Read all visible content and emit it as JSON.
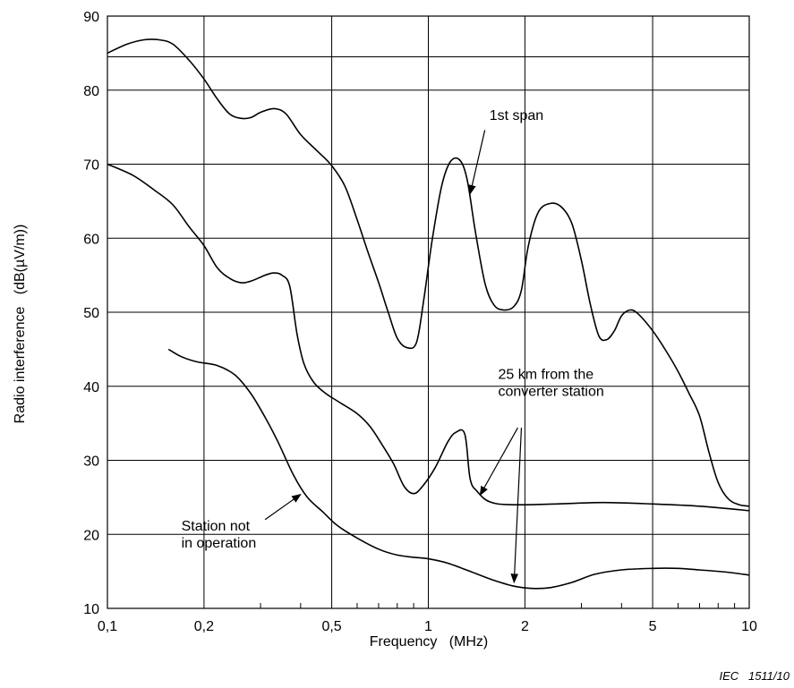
{
  "chart_data": {
    "type": "line",
    "title": "",
    "xlabel": "Frequency   (MHz)",
    "ylabel": "Radio interference   (dB(µV/m))",
    "x_scale": "log",
    "xlim": [
      0.1,
      10
    ],
    "ylim": [
      10,
      90
    ],
    "grid": true,
    "x_ticks": [
      {
        "value": 0.1,
        "label": "0,1"
      },
      {
        "value": 0.2,
        "label": "0,2"
      },
      {
        "value": 0.5,
        "label": "0,5"
      },
      {
        "value": 1,
        "label": "1"
      },
      {
        "value": 2,
        "label": "2"
      },
      {
        "value": 5,
        "label": "5"
      },
      {
        "value": 10,
        "label": "10"
      }
    ],
    "y_ticks": [
      {
        "value": 10,
        "label": "10"
      },
      {
        "value": 20,
        "label": "20"
      },
      {
        "value": 30,
        "label": "30"
      },
      {
        "value": 40,
        "label": "40"
      },
      {
        "value": 50,
        "label": "50"
      },
      {
        "value": 60,
        "label": "60"
      },
      {
        "value": 70,
        "label": "70"
      },
      {
        "value": 80,
        "label": "80"
      },
      {
        "value": 90,
        "label": "90"
      }
    ],
    "extra_hline": 84.5,
    "series": [
      {
        "points": [
          [
            0.1,
            85
          ],
          [
            0.115,
            86.2
          ],
          [
            0.13,
            86.8
          ],
          [
            0.145,
            86.8
          ],
          [
            0.16,
            86.2
          ],
          [
            0.18,
            84
          ],
          [
            0.2,
            81.5
          ],
          [
            0.22,
            78.8
          ],
          [
            0.24,
            76.8
          ],
          [
            0.26,
            76.2
          ],
          [
            0.28,
            76.3
          ],
          [
            0.3,
            77
          ],
          [
            0.33,
            77.5
          ],
          [
            0.36,
            76.8
          ],
          [
            0.4,
            74
          ],
          [
            0.45,
            71.8
          ],
          [
            0.5,
            69.8
          ],
          [
            0.55,
            67
          ],
          [
            0.6,
            62.5
          ],
          [
            0.65,
            58
          ],
          [
            0.7,
            54
          ],
          [
            0.75,
            50
          ],
          [
            0.8,
            46.5
          ],
          [
            0.86,
            45.2
          ],
          [
            0.92,
            46
          ],
          [
            0.97,
            52
          ],
          [
            1.03,
            60
          ],
          [
            1.1,
            67
          ],
          [
            1.17,
            70.3
          ],
          [
            1.25,
            70.6
          ],
          [
            1.32,
            68
          ],
          [
            1.4,
            61
          ],
          [
            1.5,
            54
          ],
          [
            1.6,
            51
          ],
          [
            1.72,
            50.3
          ],
          [
            1.85,
            50.8
          ],
          [
            1.95,
            53
          ],
          [
            2.05,
            59
          ],
          [
            2.2,
            63.5
          ],
          [
            2.4,
            64.7
          ],
          [
            2.6,
            64.2
          ],
          [
            2.8,
            62
          ],
          [
            3,
            57
          ],
          [
            3.2,
            51
          ],
          [
            3.4,
            46.8
          ],
          [
            3.6,
            46.3
          ],
          [
            3.8,
            47.5
          ],
          [
            4.0,
            49.5
          ],
          [
            4.25,
            50.3
          ],
          [
            4.5,
            49.8
          ],
          [
            5,
            47.5
          ],
          [
            5.5,
            44.8
          ],
          [
            6,
            42
          ],
          [
            6.5,
            39
          ],
          [
            7,
            36
          ],
          [
            7.5,
            31
          ],
          [
            8,
            27
          ],
          [
            8.6,
            24.8
          ],
          [
            9.3,
            24
          ],
          [
            10,
            23.8
          ]
        ]
      },
      {
        "points": [
          [
            0.1,
            70
          ],
          [
            0.12,
            68.5
          ],
          [
            0.14,
            66.5
          ],
          [
            0.16,
            64.5
          ],
          [
            0.18,
            61.5
          ],
          [
            0.2,
            59
          ],
          [
            0.22,
            56
          ],
          [
            0.24,
            54.6
          ],
          [
            0.26,
            54
          ],
          [
            0.28,
            54.2
          ],
          [
            0.31,
            55
          ],
          [
            0.33,
            55.3
          ],
          [
            0.35,
            55
          ],
          [
            0.37,
            53.5
          ],
          [
            0.39,
            47
          ],
          [
            0.41,
            43
          ],
          [
            0.44,
            40.5
          ],
          [
            0.48,
            39
          ],
          [
            0.53,
            37.8
          ],
          [
            0.6,
            36.3
          ],
          [
            0.66,
            34.5
          ],
          [
            0.72,
            32
          ],
          [
            0.78,
            29.5
          ],
          [
            0.84,
            26.5
          ],
          [
            0.9,
            25.5
          ],
          [
            0.96,
            26.5
          ],
          [
            1.05,
            29
          ],
          [
            1.15,
            32.5
          ],
          [
            1.22,
            33.8
          ],
          [
            1.3,
            33.5
          ],
          [
            1.35,
            27.5
          ],
          [
            1.42,
            25.8
          ],
          [
            1.55,
            24.4
          ],
          [
            1.8,
            24
          ],
          [
            2.5,
            24.1
          ],
          [
            3.5,
            24.3
          ],
          [
            5,
            24.1
          ],
          [
            7,
            23.8
          ],
          [
            10,
            23.2
          ]
        ]
      },
      {
        "points": [
          [
            0.155,
            45
          ],
          [
            0.17,
            44
          ],
          [
            0.19,
            43.3
          ],
          [
            0.22,
            42.8
          ],
          [
            0.25,
            41.5
          ],
          [
            0.28,
            39
          ],
          [
            0.31,
            35.8
          ],
          [
            0.34,
            32.5
          ],
          [
            0.38,
            28
          ],
          [
            0.42,
            25
          ],
          [
            0.47,
            23
          ],
          [
            0.52,
            21.2
          ],
          [
            0.6,
            19.5
          ],
          [
            0.7,
            18
          ],
          [
            0.8,
            17.2
          ],
          [
            0.9,
            16.9
          ],
          [
            1,
            16.7
          ],
          [
            1.15,
            16.1
          ],
          [
            1.35,
            15
          ],
          [
            1.6,
            13.8
          ],
          [
            1.85,
            13
          ],
          [
            2.1,
            12.7
          ],
          [
            2.4,
            12.8
          ],
          [
            2.8,
            13.5
          ],
          [
            3.3,
            14.6
          ],
          [
            4,
            15.2
          ],
          [
            5,
            15.4
          ],
          [
            6,
            15.4
          ],
          [
            7,
            15.2
          ],
          [
            8.5,
            14.9
          ],
          [
            10,
            14.5
          ]
        ]
      }
    ],
    "annotations": [
      {
        "lines": [
          "1st span"
        ],
        "text_anchor": [
          1.55,
          76
        ],
        "arrows": [
          {
            "from": [
              1.5,
              74.6
            ],
            "to": [
              1.35,
              66
            ]
          }
        ]
      },
      {
        "lines": [
          "25 km from the",
          "converter station"
        ],
        "text_anchor": [
          1.65,
          41
        ],
        "arrows": [
          {
            "from": [
              1.9,
              34.4
            ],
            "to": [
              1.45,
              25.3
            ]
          },
          {
            "from": [
              1.95,
              34.4
            ],
            "to": [
              1.85,
              13.5
            ]
          }
        ]
      },
      {
        "lines": [
          "Station not",
          "in operation"
        ],
        "text_anchor": [
          0.17,
          20.5
        ],
        "arrows": [
          {
            "from": [
              0.31,
              22
            ],
            "to": [
              0.4,
              25.4
            ]
          }
        ]
      }
    ],
    "credit": "IEC   1511/10"
  }
}
